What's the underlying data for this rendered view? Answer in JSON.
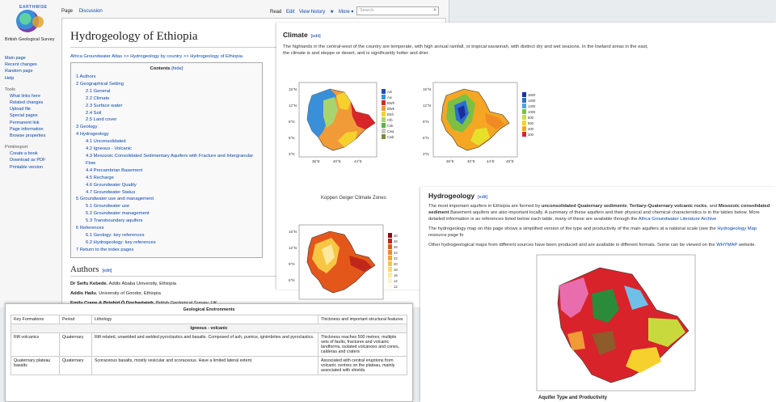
{
  "sidebar": {
    "logo_word": "EARTHWISE",
    "org": "British Geological Survey",
    "nav": [
      "Main page",
      "Recent changes",
      "Random page",
      "Help"
    ],
    "tools_heading": "Tools",
    "tools": [
      "What links here",
      "Related changes",
      "Upload file",
      "Special pages",
      "Permanent link",
      "Page information",
      "Browse properties"
    ],
    "print_heading": "Print/export",
    "print": [
      "Create a book",
      "Download as PDF",
      "Printable version"
    ]
  },
  "topbar": {
    "page_tab": "Page",
    "discussion_tab": "Discussion",
    "read_tab": "Read",
    "edit_tab": "Edit",
    "history_tab": "View history",
    "more_tab": "More ▾",
    "search_placeholder": "Search"
  },
  "article": {
    "title": "Hydrogeology of Ethiopia",
    "breadcrumb": "Africa Groundwater Atlas >> Hydrogeology by country >> Hydrogeology of Ethiopia",
    "toc_title": "Contents",
    "toc_hide": "[hide]",
    "toc": [
      {
        "t": "1 Authors",
        "l": 1
      },
      {
        "t": "2 Geographical Setting",
        "l": 1
      },
      {
        "t": "2.1 General",
        "l": 2
      },
      {
        "t": "2.2 Climate",
        "l": 2
      },
      {
        "t": "2.3 Surface water",
        "l": 2
      },
      {
        "t": "2.4 Soil",
        "l": 2
      },
      {
        "t": "2.5 Land cover",
        "l": 2
      },
      {
        "t": "3 Geology",
        "l": 1
      },
      {
        "t": "4 Hydrogeology",
        "l": 1
      },
      {
        "t": "4.1 Unconsolidated",
        "l": 2
      },
      {
        "t": "4.2 Igneous - Volcanic",
        "l": 2
      },
      {
        "t": "4.3 Mesozoic Consolidated Sedimentary Aquifers with Fracture and Intergranular Flow",
        "l": 2
      },
      {
        "t": "4.4 Precambrian Basement",
        "l": 2
      },
      {
        "t": "4.5 Recharge",
        "l": 2
      },
      {
        "t": "4.6 Groundwater Quality",
        "l": 2
      },
      {
        "t": "4.7 Groundwater Status",
        "l": 2
      },
      {
        "t": "5 Groundwater use and management",
        "l": 1
      },
      {
        "t": "5.1 Groundwater use",
        "l": 2
      },
      {
        "t": "5.2 Groundwater management",
        "l": 2
      },
      {
        "t": "5.3 Transboundary aquifers",
        "l": 2
      },
      {
        "t": "6 References",
        "l": 1
      },
      {
        "t": "6.1 Geology: key references",
        "l": 2
      },
      {
        "t": "6.2 Hydrogeology: key references",
        "l": 2
      },
      {
        "t": "7 Return to the index pages",
        "l": 1
      }
    ],
    "authors_heading": "Authors",
    "edit_label": "[edit]",
    "authors": [
      {
        "name": "Dr Seifu Kebede",
        "aff": ", Addis Ababa University, Ethiopia"
      },
      {
        "name": "Addis Hailu",
        "aff": ", University of Gondor, Ethiopia"
      },
      {
        "name": "Emily Crane & Brighid Ó Dochartaigh",
        "aff": ", British Geological Survey, UK"
      }
    ]
  },
  "climate": {
    "heading": "Climate",
    "text": "The highlands in the central-west of the country are temperate, with high annual rainfall, or tropical savannah, with distinct dry and wet seasons. In the lowland areas in the east, the climate is and steppe or desert, and is significantly hotter and drier.",
    "koppen_label": "Koppen Geiger Climate Zones",
    "legend_koppen": [
      "Am",
      "Aw",
      "BWh",
      "BWk",
      "BSh",
      "Cfb",
      "Csb",
      "Cwa",
      "Cwb"
    ],
    "legend_rain": [
      "1600",
      "1400",
      "1200",
      "1000",
      "800",
      "600",
      "400",
      "200"
    ],
    "legend_temp": [
      "30",
      "28",
      "26",
      "24",
      "22",
      "20",
      "18",
      "16",
      "14",
      "12"
    ],
    "lat_ticks": [
      "15°N",
      "12°N",
      "9°N",
      "6°N",
      "3°N"
    ],
    "lon_ticks": [
      "36°E",
      "40°E",
      "44°E",
      "48°E"
    ]
  },
  "hydro": {
    "heading": "Hydrogeology",
    "p1_a": "The most important aquifers in Ethiopia are formed by ",
    "p1_b1": "unconsolidated Quaternary sediments",
    "p1_c": ", ",
    "p1_b2": "Tertiary-Quaternary volcanic rocks",
    "p1_d": ", and ",
    "p1_b3": "Mesozoic consolidated sediment",
    "p1_e": " Basement aquifers are also important locally. A summary of these aquifers and their physical and chemical characteristics is in the tables below. More detailed information is av references listed below each table, many of these are available through the ",
    "p1_link": "Africa Groundwater Literature Archive",
    "p2_a": "The hydrogeology map on this page shows a simplified version of the type and productivity of the main aquifers at a national scale (see the ",
    "p2_link": "Hydrogeology Map",
    "p2_b": " resource page fo",
    "p3_a": "Other hydrogeological maps from different sources have been produced and are available in different formats. Some can be viewed on the ",
    "p3_link": "WHYMAP",
    "p3_b": " website.",
    "map_caption": "Aquifer Type and Productivity"
  },
  "geo_table": {
    "title": "Geological Environments",
    "headers": [
      "Key Formations",
      "Period",
      "Lithology",
      "Thickness and important structural features"
    ],
    "group": "Igneous - volcanic",
    "rows": [
      [
        "Rift volcanics",
        "Quaternary",
        "Rift related, unwelded and welded pyroclastics and basalts. Composed of ash, pumice, ignimbrites and pyroclastics.",
        "Thickness reaches 500 metres; multiple sets of faults, fractures and volcanic landforms, isolated volcanoes and cones, calderas and craters"
      ],
      [
        "Quaternary plateau basalts",
        "Quaternary",
        "Scoraceous basalts, mostly vesicular and scoraceous. Have a limited lateral extent.",
        "Associated with central eruptions from volcanic centres on the plateau, mainly associated with shields."
      ]
    ]
  },
  "colors": {
    "link": "#0645ad",
    "koppen": [
      "#1f4ea8",
      "#3a8fd9",
      "#d7262b",
      "#f19b38",
      "#f6d12e",
      "#a8d46e",
      "#56b449",
      "#c6c6c6",
      "#7b8a3a"
    ]
  }
}
